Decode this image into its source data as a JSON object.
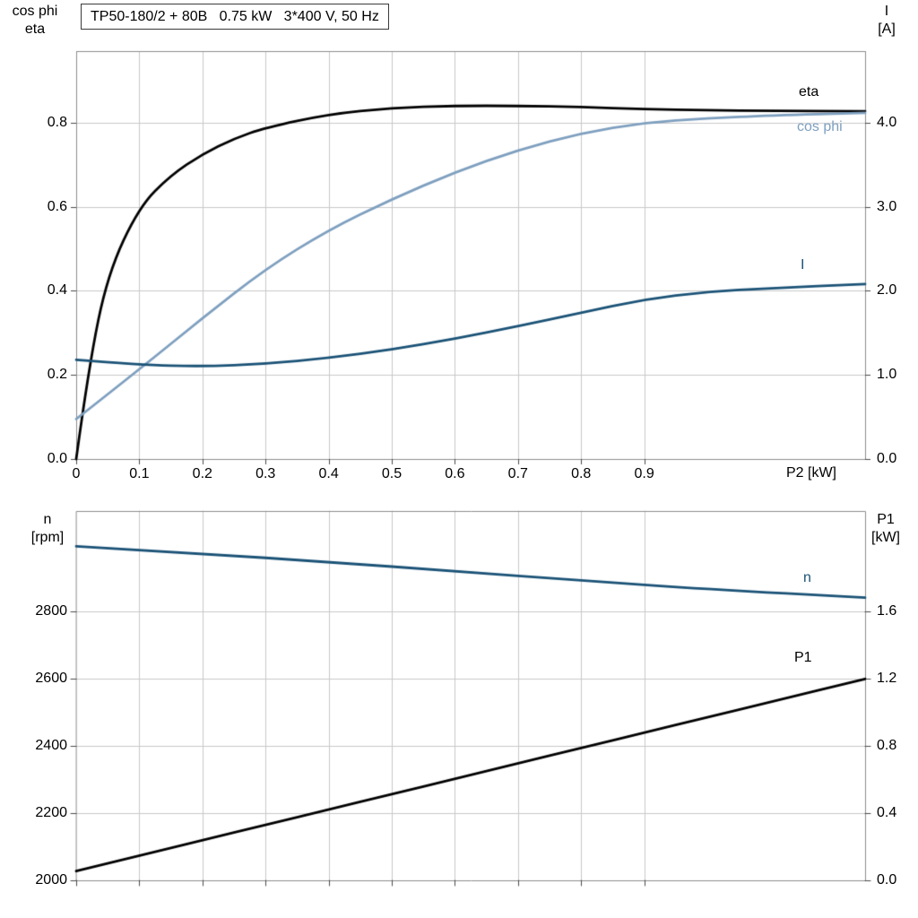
{
  "colors": {
    "background": "#ffffff",
    "frame": "#8c8c8c",
    "grid": "#c9c9c9",
    "tick": "#4a4a4a",
    "black_curve": "#000000",
    "light_blue_curve": "#7e9fbf",
    "dark_blue_curve": "#1a5276",
    "text": "#000000"
  },
  "chart_data": [
    {
      "type": "line",
      "title": "TP50-180/2 + 80B   0.75 kW   3*400 V, 50 Hz",
      "grid": true,
      "legend_position": "inline-right",
      "x_axis": {
        "label": "P2 [kW]",
        "range": [
          0,
          1.25
        ],
        "ticks": [
          0,
          0.1,
          0.2,
          0.3,
          0.4,
          0.5,
          0.6,
          0.7,
          0.8,
          0.9
        ],
        "tick_labels": [
          "0",
          "0.1",
          "0.2",
          "0.3",
          "0.4",
          "0.5",
          "0.6",
          "0.7",
          "0.8",
          "0.9"
        ]
      },
      "y_left": {
        "label_lines": [
          "cos phi",
          "eta"
        ],
        "range": [
          0,
          0.97
        ],
        "ticks": [
          0.0,
          0.2,
          0.4,
          0.6,
          0.8
        ],
        "tick_labels": [
          "0.0",
          "0.2",
          "0.4",
          "0.6",
          "0.8"
        ]
      },
      "y_right": {
        "label_lines": [
          "I",
          "[A]"
        ],
        "range": [
          0,
          4.85
        ],
        "ticks": [
          0.0,
          1.0,
          2.0,
          3.0,
          4.0
        ],
        "tick_labels": [
          "0.0",
          "1.0",
          "2.0",
          "3.0",
          "4.0"
        ]
      },
      "series": [
        {
          "name": "eta",
          "label": "eta",
          "axis": "left",
          "color": "black_curve",
          "x": [
            0,
            0.02,
            0.05,
            0.1,
            0.15,
            0.2,
            0.25,
            0.3,
            0.4,
            0.5,
            0.6,
            0.7,
            0.8,
            0.9,
            1.0,
            1.1,
            1.25
          ],
          "values": [
            0,
            0.22,
            0.44,
            0.6,
            0.675,
            0.725,
            0.762,
            0.788,
            0.82,
            0.835,
            0.84,
            0.84,
            0.837,
            0.832,
            0.829,
            0.828,
            0.827
          ]
        },
        {
          "name": "cos phi",
          "label": "cos phi",
          "axis": "left",
          "color": "light_blue_curve",
          "x": [
            0,
            0.1,
            0.2,
            0.3,
            0.4,
            0.5,
            0.6,
            0.7,
            0.8,
            0.9,
            1.0,
            1.1,
            1.25
          ],
          "values": [
            0.095,
            0.213,
            0.335,
            0.452,
            0.545,
            0.618,
            0.682,
            0.735,
            0.775,
            0.8,
            0.81,
            0.817,
            0.823
          ]
        },
        {
          "name": "I",
          "label": "I",
          "axis": "right",
          "color": "dark_blue_curve",
          "x": [
            0,
            0.1,
            0.2,
            0.3,
            0.4,
            0.5,
            0.6,
            0.7,
            0.8,
            0.9,
            1.0,
            1.1,
            1.25
          ],
          "values": [
            1.18,
            1.12,
            1.1,
            1.13,
            1.2,
            1.3,
            1.43,
            1.58,
            1.74,
            1.9,
            1.99,
            2.03,
            2.08
          ]
        }
      ]
    },
    {
      "type": "line",
      "title": "",
      "grid": true,
      "legend_position": "inline-right",
      "x_axis": {
        "label": "",
        "range": [
          0,
          1.25
        ],
        "ticks": [
          0,
          0.1,
          0.2,
          0.3,
          0.4,
          0.5,
          0.6,
          0.7,
          0.8,
          0.9
        ],
        "tick_labels": []
      },
      "y_left": {
        "label_lines": [
          "n",
          "[rpm]"
        ],
        "range": [
          2000,
          3100
        ],
        "ticks": [
          2000,
          2200,
          2400,
          2600,
          2800
        ],
        "tick_labels": [
          "2000",
          "2200",
          "2400",
          "2600",
          "2800"
        ]
      },
      "y_right": {
        "label_lines": [
          "P1",
          "[kW]"
        ],
        "range": [
          0,
          2.2
        ],
        "ticks": [
          0.0,
          0.4,
          0.8,
          1.2,
          1.6
        ],
        "tick_labels": [
          "0.0",
          "0.4",
          "0.8",
          "1.2",
          "1.6"
        ]
      },
      "series": [
        {
          "name": "n",
          "label": "n",
          "axis": "left",
          "color": "dark_blue_curve",
          "x": [
            0,
            0.2,
            0.4,
            0.6,
            0.8,
            1.0,
            1.25
          ],
          "values": [
            2995,
            2973,
            2948,
            2921,
            2893,
            2867,
            2842
          ]
        },
        {
          "name": "P1",
          "label": "P1",
          "axis": "right",
          "color": "black_curve",
          "x": [
            0,
            0.1,
            0.2,
            0.3,
            0.4,
            0.5,
            0.6,
            0.7,
            0.8,
            0.9,
            1.0,
            1.1,
            1.25
          ],
          "values": [
            0.055,
            0.147,
            0.239,
            0.33,
            0.422,
            0.513,
            0.605,
            0.697,
            0.788,
            0.88,
            0.971,
            1.063,
            1.2
          ]
        }
      ]
    }
  ]
}
